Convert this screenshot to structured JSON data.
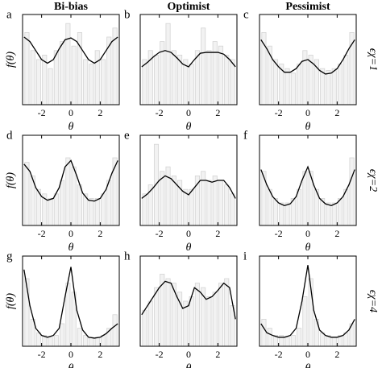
{
  "column_titles": [
    "Bi-bias",
    "Optimist",
    "Pessimist"
  ],
  "row_labels": [
    "ϵχ=1",
    "ϵχ=2",
    "ϵχ=4"
  ],
  "chart_data": [
    {
      "type": "histogram_line",
      "panel": "a",
      "ylabel": "f(θ)",
      "xlabel": "θ",
      "xlim": [
        -3.3,
        3.3
      ],
      "ylim": [
        0,
        1
      ],
      "xticks": [
        -2,
        0,
        2
      ],
      "bins": [
        -3.2,
        -2.8,
        -2.4,
        -2.0,
        -1.6,
        -1.2,
        -0.8,
        -0.4,
        0,
        0.4,
        0.8,
        1.2,
        1.6,
        2.0,
        2.4,
        2.8,
        3.2
      ],
      "counts": [
        0.8,
        0.6,
        0.5,
        0.55,
        0.4,
        0.6,
        0.7,
        0.9,
        0.65,
        0.8,
        0.5,
        0.45,
        0.6,
        0.5,
        0.75,
        0.85
      ],
      "x": [
        -3.2,
        -2.8,
        -2.4,
        -2.0,
        -1.6,
        -1.2,
        -0.8,
        -0.4,
        0,
        0.4,
        0.8,
        1.2,
        1.6,
        2.0,
        2.4,
        2.8,
        3.2
      ],
      "values": [
        0.75,
        0.7,
        0.6,
        0.5,
        0.46,
        0.5,
        0.62,
        0.72,
        0.74,
        0.7,
        0.6,
        0.5,
        0.46,
        0.5,
        0.6,
        0.7,
        0.75
      ]
    },
    {
      "type": "histogram_line",
      "panel": "b",
      "xlabel": "θ",
      "xlim": [
        -3.3,
        3.3
      ],
      "ylim": [
        0,
        1
      ],
      "xticks": [
        -2,
        0,
        2
      ],
      "bins": [
        -3.2,
        -2.8,
        -2.4,
        -2.0,
        -1.6,
        -1.2,
        -0.8,
        -0.4,
        0,
        0.4,
        0.8,
        1.2,
        1.6,
        2.0,
        2.4,
        2.8,
        3.2
      ],
      "counts": [
        0.5,
        0.6,
        0.55,
        0.7,
        0.9,
        0.6,
        0.55,
        0.5,
        0.45,
        0.6,
        0.85,
        0.6,
        0.7,
        0.65,
        0.55,
        0.5
      ],
      "x": [
        -3.2,
        -2.8,
        -2.4,
        -2.0,
        -1.6,
        -1.2,
        -0.8,
        -0.4,
        0,
        0.4,
        0.8,
        1.2,
        1.6,
        2.0,
        2.4,
        2.8,
        3.2
      ],
      "values": [
        0.42,
        0.47,
        0.53,
        0.58,
        0.6,
        0.58,
        0.52,
        0.45,
        0.42,
        0.5,
        0.57,
        0.58,
        0.58,
        0.58,
        0.56,
        0.5,
        0.42
      ]
    },
    {
      "type": "histogram_line",
      "panel": "c",
      "xlabel": "θ",
      "xlim": [
        -3.3,
        3.3
      ],
      "ylim": [
        0,
        1
      ],
      "xticks": [
        -2,
        0,
        2
      ],
      "bins": [
        -3.2,
        -2.8,
        -2.4,
        -2.0,
        -1.6,
        -1.2,
        -0.8,
        -0.4,
        0,
        0.4,
        0.8,
        1.2,
        1.6,
        2.0,
        2.4,
        2.8,
        3.2
      ],
      "counts": [
        0.8,
        0.65,
        0.5,
        0.45,
        0.4,
        0.35,
        0.45,
        0.6,
        0.55,
        0.5,
        0.4,
        0.38,
        0.4,
        0.45,
        0.55,
        0.8
      ],
      "x": [
        -3.2,
        -2.8,
        -2.4,
        -2.0,
        -1.6,
        -1.2,
        -0.8,
        -0.4,
        0,
        0.4,
        0.8,
        1.2,
        1.6,
        2.0,
        2.4,
        2.8,
        3.2
      ],
      "values": [
        0.72,
        0.62,
        0.5,
        0.42,
        0.36,
        0.36,
        0.4,
        0.48,
        0.5,
        0.45,
        0.38,
        0.34,
        0.35,
        0.4,
        0.5,
        0.62,
        0.72
      ]
    },
    {
      "type": "histogram_line",
      "panel": "d",
      "ylabel": "f(θ)",
      "xlabel": "θ",
      "xlim": [
        -3.3,
        3.3
      ],
      "ylim": [
        0,
        1
      ],
      "xticks": [
        -2,
        0,
        2
      ],
      "bins": [
        -3.2,
        -2.8,
        -2.4,
        -2.0,
        -1.6,
        -1.2,
        -0.8,
        -0.4,
        0,
        0.4,
        0.8,
        1.2,
        1.6,
        2.0,
        2.4,
        2.8,
        3.2
      ],
      "counts": [
        0.7,
        0.55,
        0.4,
        0.35,
        0.3,
        0.35,
        0.5,
        0.75,
        0.65,
        0.45,
        0.35,
        0.3,
        0.3,
        0.35,
        0.5,
        0.75
      ],
      "x": [
        -3.2,
        -2.8,
        -2.4,
        -2.0,
        -1.6,
        -1.2,
        -0.8,
        -0.4,
        0,
        0.4,
        0.8,
        1.2,
        1.6,
        2.0,
        2.4,
        2.8,
        3.2
      ],
      "values": [
        0.68,
        0.6,
        0.42,
        0.32,
        0.28,
        0.3,
        0.42,
        0.65,
        0.72,
        0.55,
        0.36,
        0.28,
        0.27,
        0.3,
        0.4,
        0.58,
        0.72
      ]
    },
    {
      "type": "histogram_line",
      "panel": "e",
      "xlabel": "θ",
      "xlim": [
        -3.3,
        3.3
      ],
      "ylim": [
        0,
        1
      ],
      "xticks": [
        -2,
        0,
        2
      ],
      "bins": [
        -3.2,
        -2.8,
        -2.4,
        -2.0,
        -1.6,
        -1.2,
        -0.8,
        -0.4,
        0,
        0.4,
        0.8,
        1.2,
        1.6,
        2.0,
        2.4,
        2.8,
        3.2
      ],
      "counts": [
        0.35,
        0.45,
        0.9,
        0.6,
        0.65,
        0.55,
        0.5,
        0.4,
        0.4,
        0.55,
        0.6,
        0.5,
        0.55,
        0.5,
        0.45,
        0.35
      ],
      "x": [
        -3.2,
        -2.8,
        -2.4,
        -2.0,
        -1.6,
        -1.2,
        -0.8,
        -0.4,
        0,
        0.4,
        0.8,
        1.2,
        1.6,
        2.0,
        2.4,
        2.8,
        3.2
      ],
      "values": [
        0.3,
        0.35,
        0.42,
        0.5,
        0.55,
        0.52,
        0.45,
        0.38,
        0.34,
        0.42,
        0.5,
        0.5,
        0.48,
        0.5,
        0.5,
        0.42,
        0.3
      ]
    },
    {
      "type": "histogram_line",
      "panel": "f",
      "xlabel": "θ",
      "xlim": [
        -3.3,
        3.3
      ],
      "ylim": [
        0,
        1
      ],
      "xticks": [
        -2,
        0,
        2
      ],
      "bins": [
        -3.2,
        -2.8,
        -2.4,
        -2.0,
        -1.6,
        -1.2,
        -0.8,
        -0.4,
        0,
        0.4,
        0.8,
        1.2,
        1.6,
        2.0,
        2.4,
        2.8,
        3.2
      ],
      "counts": [
        0.6,
        0.4,
        0.3,
        0.25,
        0.25,
        0.3,
        0.4,
        0.6,
        0.6,
        0.4,
        0.3,
        0.25,
        0.25,
        0.3,
        0.4,
        0.75
      ],
      "x": [
        -3.2,
        -2.8,
        -2.4,
        -2.0,
        -1.6,
        -1.2,
        -0.8,
        -0.4,
        0,
        0.4,
        0.8,
        1.2,
        1.6,
        2.0,
        2.4,
        2.8,
        3.2
      ],
      "values": [
        0.62,
        0.45,
        0.32,
        0.25,
        0.22,
        0.24,
        0.32,
        0.5,
        0.65,
        0.45,
        0.3,
        0.24,
        0.22,
        0.25,
        0.32,
        0.45,
        0.62
      ]
    },
    {
      "type": "histogram_line",
      "panel": "g",
      "ylabel": "f(θ)",
      "xlabel": "θ",
      "xlim": [
        -3.3,
        3.3
      ],
      "ylim": [
        0,
        1
      ],
      "xticks": [
        -2,
        0,
        2
      ],
      "bins": [
        -3.2,
        -2.8,
        -2.4,
        -2.0,
        -1.6,
        -1.2,
        -0.8,
        -0.4,
        0,
        0.4,
        0.8,
        1.2,
        1.6,
        2.0,
        2.4,
        2.8,
        3.2
      ],
      "counts": [
        0.75,
        0.3,
        0.15,
        0.12,
        0.1,
        0.12,
        0.25,
        0.7,
        0.6,
        0.2,
        0.12,
        0.1,
        0.1,
        0.12,
        0.2,
        0.35
      ],
      "x": [
        -3.2,
        -2.8,
        -2.4,
        -2.0,
        -1.6,
        -1.2,
        -0.8,
        -0.4,
        0,
        0.4,
        0.8,
        1.2,
        1.6,
        2.0,
        2.4,
        2.8,
        3.2
      ],
      "values": [
        0.85,
        0.45,
        0.2,
        0.12,
        0.1,
        0.12,
        0.2,
        0.55,
        0.88,
        0.4,
        0.18,
        0.1,
        0.09,
        0.1,
        0.14,
        0.2,
        0.25
      ]
    },
    {
      "type": "histogram_line",
      "panel": "h",
      "xlabel": "θ",
      "xlim": [
        -3.3,
        3.3
      ],
      "ylim": [
        0,
        1
      ],
      "xticks": [
        -2,
        0,
        2
      ],
      "bins": [
        -3.2,
        -2.8,
        -2.4,
        -2.0,
        -1.6,
        -1.2,
        -0.8,
        -0.4,
        0,
        0.4,
        0.8,
        1.2,
        1.6,
        2.0,
        2.4,
        2.8,
        3.2
      ],
      "counts": [
        0.4,
        0.5,
        0.65,
        0.8,
        0.75,
        0.7,
        0.6,
        0.5,
        0.55,
        0.7,
        0.65,
        0.55,
        0.6,
        0.7,
        0.75,
        0.45
      ],
      "x": [
        -3.2,
        -2.8,
        -2.4,
        -2.0,
        -1.6,
        -1.2,
        -0.8,
        -0.4,
        0,
        0.4,
        0.8,
        1.2,
        1.6,
        2.0,
        2.4,
        2.8,
        3.2
      ],
      "values": [
        0.35,
        0.45,
        0.55,
        0.65,
        0.72,
        0.7,
        0.55,
        0.42,
        0.45,
        0.65,
        0.6,
        0.52,
        0.55,
        0.62,
        0.7,
        0.65,
        0.3
      ]
    },
    {
      "type": "histogram_line",
      "panel": "i",
      "xlabel": "θ",
      "xlim": [
        -3.3,
        3.3
      ],
      "ylim": [
        0,
        1
      ],
      "xticks": [
        -2,
        0,
        2
      ],
      "bins": [
        -3.2,
        -2.8,
        -2.4,
        -2.0,
        -1.6,
        -1.2,
        -0.8,
        -0.4,
        0,
        0.4,
        0.8,
        1.2,
        1.6,
        2.0,
        2.4,
        2.8,
        3.2
      ],
      "counts": [
        0.3,
        0.2,
        0.12,
        0.12,
        0.1,
        0.12,
        0.2,
        0.55,
        0.75,
        0.3,
        0.15,
        0.12,
        0.1,
        0.12,
        0.15,
        0.25
      ],
      "x": [
        -3.2,
        -2.8,
        -2.4,
        -2.0,
        -1.6,
        -1.2,
        -0.8,
        -0.4,
        0,
        0.4,
        0.8,
        1.2,
        1.6,
        2.0,
        2.4,
        2.8,
        3.2
      ],
      "values": [
        0.25,
        0.15,
        0.12,
        0.1,
        0.1,
        0.12,
        0.2,
        0.5,
        0.9,
        0.4,
        0.18,
        0.12,
        0.1,
        0.1,
        0.12,
        0.18,
        0.3
      ]
    }
  ]
}
